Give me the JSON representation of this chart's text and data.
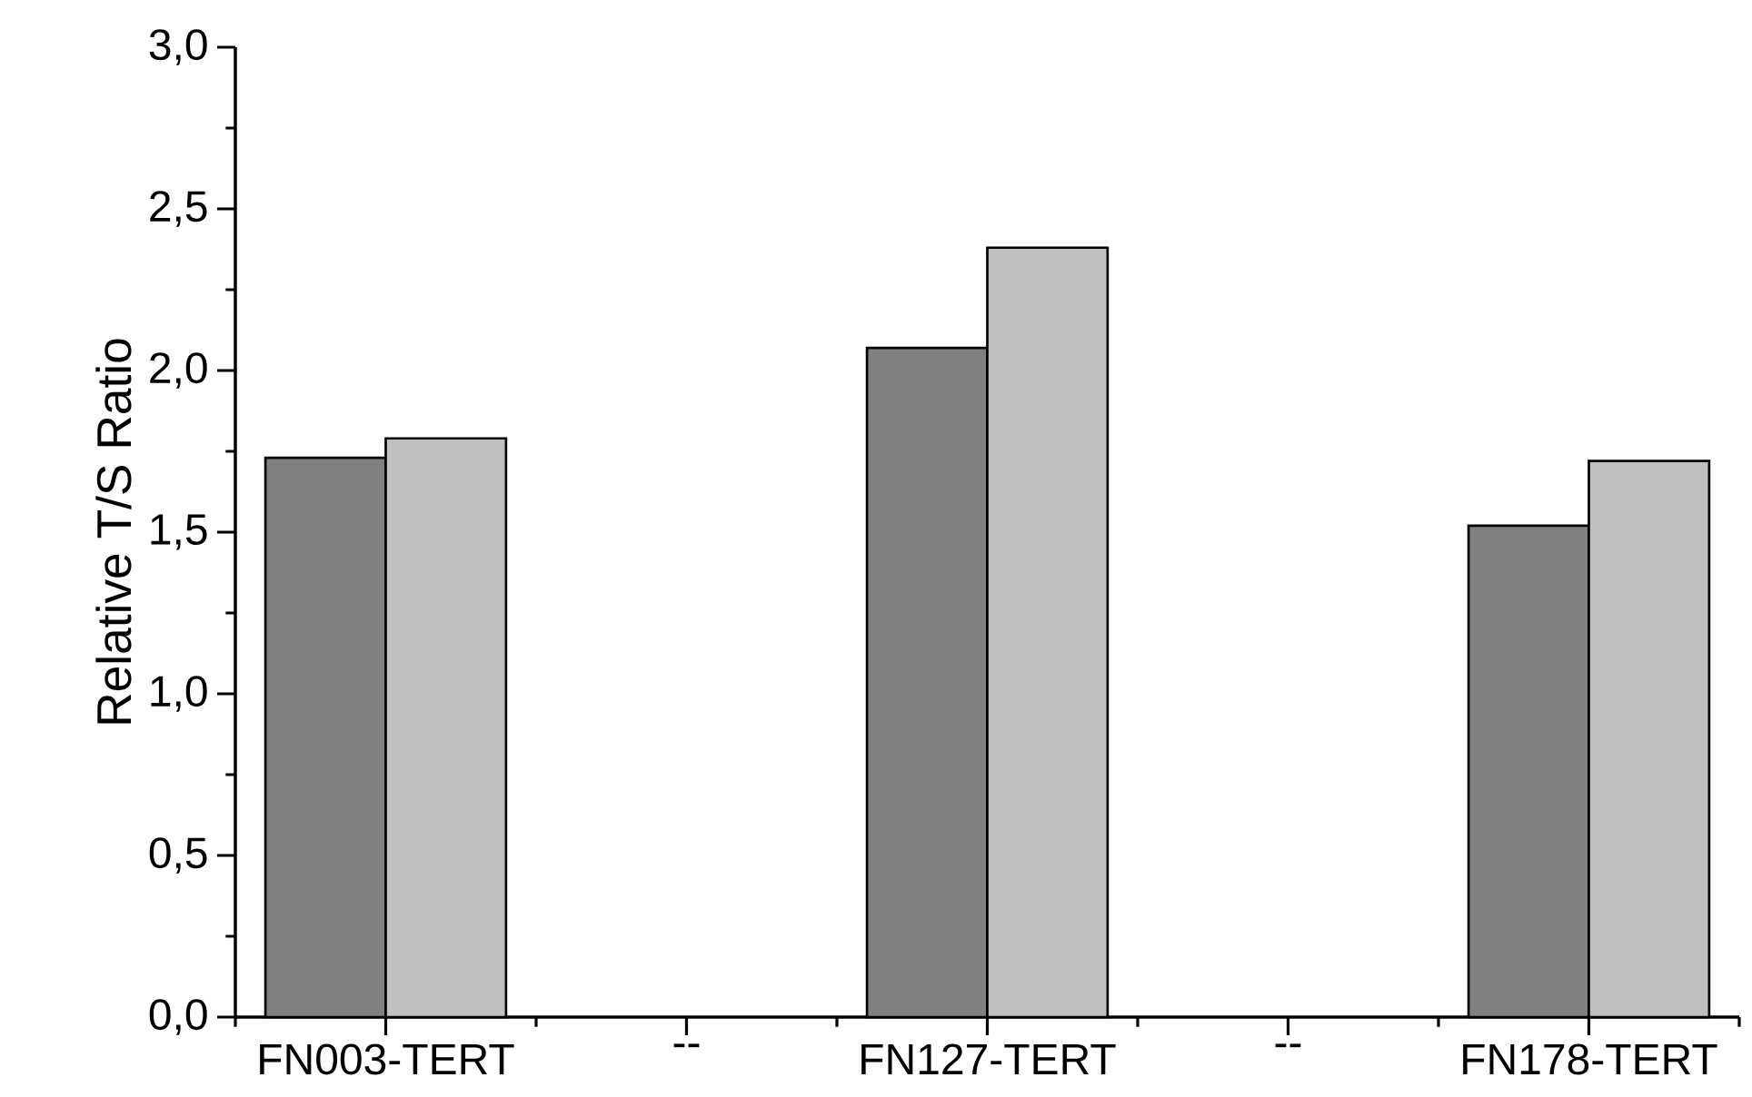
{
  "chart_data": {
    "type": "bar",
    "ylabel": "Relative T/S Ratio",
    "categories": [
      "FN003-TERT",
      "--",
      "FN127-TERT",
      "--",
      "FN178-TERT"
    ],
    "series": [
      {
        "color": "#808080",
        "values": [
          1.73,
          null,
          2.07,
          null,
          1.52
        ]
      },
      {
        "color": "#c0c0c0",
        "values": [
          1.79,
          null,
          2.38,
          null,
          1.72
        ]
      }
    ],
    "ylim": [
      0,
      3
    ],
    "yticks": [
      {
        "value": 0,
        "label": "0,0"
      },
      {
        "value": 0.5,
        "label": "0,5"
      },
      {
        "value": 1,
        "label": "1,0"
      },
      {
        "value": 1.5,
        "label": "1,5"
      },
      {
        "value": 2,
        "label": "2,0"
      },
      {
        "value": 2.5,
        "label": "2,5"
      },
      {
        "value": 3,
        "label": "3,0"
      }
    ]
  }
}
